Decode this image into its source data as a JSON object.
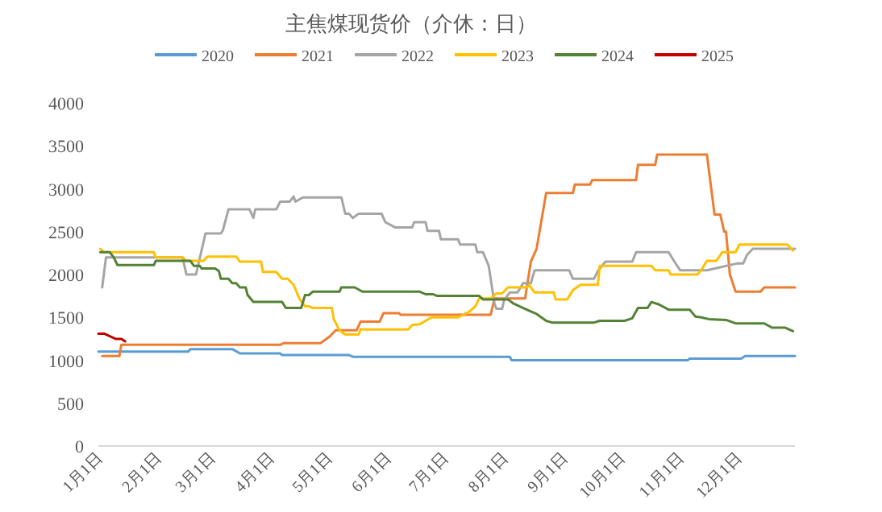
{
  "chart_data": {
    "type": "line",
    "title": "主焦煤现货价（介休：日）",
    "legend": "top",
    "xlim": [
      "--01-01",
      "--12-31"
    ],
    "ylim": [
      0,
      4000
    ],
    "xticks": [
      {
        "value": "--01-01",
        "label": "1月1日"
      },
      {
        "value": "--02-01",
        "label": "2月1日"
      },
      {
        "value": "--03-01",
        "label": "3月1日"
      },
      {
        "value": "--04-01",
        "label": "4月1日"
      },
      {
        "value": "--05-01",
        "label": "5月1日"
      },
      {
        "value": "--06-01",
        "label": "6月1日"
      },
      {
        "value": "--07-01",
        "label": "7月1日"
      },
      {
        "value": "--08-01",
        "label": "8月1日"
      },
      {
        "value": "--09-01",
        "label": "9月1日"
      },
      {
        "value": "--10-01",
        "label": "10月1日"
      },
      {
        "value": "--11-01",
        "label": "11月1日"
      },
      {
        "value": "--12-01",
        "label": "12月1日"
      }
    ],
    "yticks": [
      0,
      500,
      1000,
      1500,
      2000,
      2500,
      3000,
      3500,
      4000
    ],
    "series": [
      {
        "name": "2020",
        "color": "#5b9bd5",
        "x": [
          "--01-01",
          "--02-17",
          "--02-18",
          "--03-12",
          "--03-16",
          "--04-06",
          "--04-07",
          "--05-12",
          "--05-14",
          "--08-04",
          "--08-05",
          "--11-05",
          "--11-06",
          "--12-03",
          "--12-05",
          "--12-31"
        ],
        "values": [
          1100,
          1100,
          1130,
          1130,
          1080,
          1080,
          1060,
          1060,
          1040,
          1040,
          1000,
          1000,
          1020,
          1020,
          1050,
          1050
        ]
      },
      {
        "name": "2021",
        "color": "#ed7d31",
        "x": [
          "--01-03",
          "--01-12",
          "--01-13",
          "--04-06",
          "--04-08",
          "--04-27",
          "--04-29",
          "--05-02",
          "--05-05",
          "--05-16",
          "--05-18",
          "--05-28",
          "--05-30",
          "--06-07",
          "--06-08",
          "--07-25",
          "--07-27",
          "--08-12",
          "--08-15",
          "--08-18",
          "--08-23",
          "--09-06",
          "--09-07",
          "--09-15",
          "--09-16",
          "--10-09",
          "--10-10",
          "--10-19",
          "--10-20",
          "--11-15",
          "--11-19",
          "--11-22",
          "--11-24",
          "--11-25",
          "--11-27",
          "--11-30",
          "--12-13",
          "--12-15",
          "--12-31"
        ],
        "values": [
          1050,
          1050,
          1180,
          1180,
          1200,
          1200,
          1230,
          1280,
          1350,
          1350,
          1450,
          1450,
          1550,
          1550,
          1530,
          1530,
          1720,
          1720,
          2150,
          2300,
          2950,
          2950,
          3050,
          3050,
          3100,
          3100,
          3280,
          3280,
          3400,
          3400,
          2700,
          2700,
          2500,
          2500,
          2000,
          1800,
          1800,
          1850,
          1850
        ]
      },
      {
        "name": "2022",
        "color": "#a5a5a5",
        "x": [
          "--01-03",
          "--01-05",
          "--02-14",
          "--02-16",
          "--02-21",
          "--02-26",
          "--03-06",
          "--03-07",
          "--03-10",
          "--03-21",
          "--03-23",
          "--03-24",
          "--04-04",
          "--04-06",
          "--04-11",
          "--04-13",
          "--04-14",
          "--04-18",
          "--05-08",
          "--05-10",
          "--05-12",
          "--05-14",
          "--05-17",
          "--05-29",
          "--05-31",
          "--06-05",
          "--06-14",
          "--06-15",
          "--06-21",
          "--06-22",
          "--06-28",
          "--06-29",
          "--07-08",
          "--07-09",
          "--07-17",
          "--07-18",
          "--07-21",
          "--07-24",
          "--07-27",
          "--07-28",
          "--07-31",
          "--08-01",
          "--08-04",
          "--08-08",
          "--08-11",
          "--08-15",
          "--08-17",
          "--09-04",
          "--09-06",
          "--09-17",
          "--09-19",
          "--09-23",
          "--10-07",
          "--10-09",
          "--10-26",
          "--10-29",
          "--11-01",
          "--11-15",
          "--12-01",
          "--12-04",
          "--12-06",
          "--12-09",
          "--12-31"
        ],
        "values": [
          1850,
          2200,
          2200,
          2000,
          2000,
          2480,
          2480,
          2510,
          2760,
          2760,
          2660,
          2760,
          2760,
          2850,
          2850,
          2910,
          2850,
          2900,
          2900,
          2710,
          2710,
          2660,
          2710,
          2710,
          2610,
          2550,
          2550,
          2610,
          2610,
          2510,
          2510,
          2410,
          2410,
          2350,
          2350,
          2260,
          2260,
          2100,
          1660,
          1600,
          1600,
          1700,
          1790,
          1790,
          1900,
          1900,
          2050,
          2050,
          1950,
          1950,
          2040,
          2150,
          2150,
          2260,
          2260,
          2150,
          2050,
          2050,
          2130,
          2130,
          2230,
          2300,
          2300
        ]
      },
      {
        "name": "2023",
        "color": "#ffc000",
        "x": [
          "--01-02",
          "--01-04",
          "--01-30",
          "--01-31",
          "--02-14",
          "--02-16",
          "--02-25",
          "--02-27",
          "--03-14",
          "--03-16",
          "--03-27",
          "--03-28",
          "--04-04",
          "--04-07",
          "--04-10",
          "--04-13",
          "--04-16",
          "--04-19",
          "--04-21",
          "--04-23",
          "--05-03",
          "--05-04",
          "--05-07",
          "--05-10",
          "--05-17",
          "--05-18",
          "--06-12",
          "--06-14",
          "--06-18",
          "--06-24",
          "--07-08",
          "--07-14",
          "--07-17",
          "--07-19",
          "--07-25",
          "--07-28",
          "--07-31",
          "--08-03",
          "--08-13",
          "--08-14",
          "--08-17",
          "--08-27",
          "--08-28",
          "--09-03",
          "--09-06",
          "--09-10",
          "--09-19",
          "--09-20",
          "--10-17",
          "--10-19",
          "--10-26",
          "--10-27",
          "--11-10",
          "--11-12",
          "--11-15",
          "--11-20",
          "--11-23",
          "--11-30",
          "--12-02",
          "--12-27",
          "--12-30"
        ],
        "values": [
          2300,
          2260,
          2260,
          2200,
          2200,
          2160,
          2160,
          2210,
          2210,
          2150,
          2150,
          2030,
          2030,
          1950,
          1950,
          1880,
          1720,
          1630,
          1630,
          1610,
          1610,
          1480,
          1350,
          1300,
          1300,
          1360,
          1360,
          1410,
          1420,
          1500,
          1500,
          1570,
          1630,
          1720,
          1720,
          1780,
          1780,
          1850,
          1850,
          1880,
          1790,
          1790,
          1710,
          1710,
          1820,
          1880,
          1880,
          2100,
          2100,
          2050,
          2050,
          2000,
          2000,
          2050,
          2160,
          2160,
          2260,
          2260,
          2350,
          2350,
          2280
        ]
      },
      {
        "name": "2024",
        "color": "#548235",
        "x": [
          "--01-02",
          "--01-07",
          "--01-09",
          "--01-11",
          "--01-30",
          "--01-31",
          "--02-18",
          "--02-20",
          "--02-23",
          "--02-24",
          "--03-03",
          "--03-05",
          "--03-06",
          "--03-10",
          "--03-12",
          "--03-14",
          "--03-16",
          "--03-19",
          "--03-20",
          "--03-23",
          "--04-07",
          "--04-09",
          "--04-17",
          "--04-19",
          "--04-21",
          "--04-23",
          "--05-07",
          "--05-08",
          "--05-15",
          "--05-19",
          "--06-18",
          "--06-21",
          "--06-25",
          "--06-27",
          "--07-19",
          "--07-21",
          "--08-03",
          "--08-06",
          "--08-11",
          "--08-15",
          "--08-18",
          "--08-23",
          "--08-26",
          "--09-17",
          "--09-20",
          "--10-03",
          "--10-07",
          "--10-10",
          "--10-15",
          "--10-17",
          "--10-21",
          "--10-26",
          "--11-06",
          "--11-09",
          "--11-12",
          "--11-16",
          "--11-25",
          "--11-30",
          "--12-15",
          "--12-19",
          "--12-26",
          "--12-30"
        ],
        "values": [
          2260,
          2260,
          2200,
          2110,
          2110,
          2160,
          2160,
          2100,
          2100,
          2070,
          2070,
          2040,
          1950,
          1950,
          1900,
          1900,
          1850,
          1850,
          1760,
          1680,
          1680,
          1610,
          1610,
          1760,
          1760,
          1800,
          1800,
          1850,
          1850,
          1800,
          1800,
          1770,
          1770,
          1750,
          1750,
          1710,
          1710,
          1660,
          1610,
          1570,
          1540,
          1460,
          1440,
          1440,
          1460,
          1460,
          1490,
          1610,
          1610,
          1680,
          1650,
          1590,
          1590,
          1510,
          1500,
          1480,
          1470,
          1430,
          1430,
          1380,
          1380,
          1340
        ]
      },
      {
        "name": "2025",
        "color": "#c00000",
        "x": [
          "--01-01",
          "--01-04",
          "--01-07",
          "--01-10",
          "--01-13",
          "--01-15"
        ],
        "values": [
          1310,
          1310,
          1280,
          1250,
          1250,
          1220
        ]
      }
    ]
  }
}
